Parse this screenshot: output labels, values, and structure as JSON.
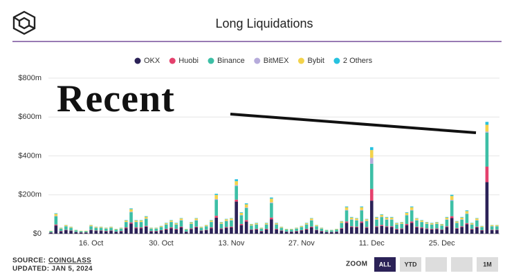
{
  "chart_data": {
    "type": "stacked_bar",
    "title": "Long Liquidations",
    "categories": [
      null,
      null,
      null,
      null,
      null,
      null,
      null,
      null,
      "16. Oct",
      null,
      null,
      null,
      null,
      null,
      null,
      null,
      null,
      null,
      null,
      null,
      null,
      null,
      "30. Oct",
      null,
      null,
      null,
      null,
      null,
      null,
      null,
      null,
      null,
      null,
      null,
      null,
      null,
      "13. Nov",
      null,
      null,
      null,
      null,
      null,
      null,
      null,
      null,
      null,
      null,
      null,
      null,
      null,
      "27. Nov",
      null,
      null,
      null,
      null,
      null,
      null,
      null,
      null,
      null,
      null,
      null,
      null,
      null,
      "11. Dec",
      null,
      null,
      null,
      null,
      null,
      null,
      null,
      null,
      null,
      null,
      null,
      null,
      null,
      "25. Dec",
      null,
      null,
      null,
      null,
      null,
      null,
      null,
      null,
      null,
      null,
      null
    ],
    "series": [
      {
        "name": "OKX",
        "color": "#2b2257",
        "values": [
          6,
          42,
          12,
          18,
          14,
          8,
          6,
          6,
          18,
          14,
          14,
          12,
          14,
          10,
          12,
          28,
          52,
          28,
          28,
          36,
          12,
          12,
          16,
          22,
          28,
          22,
          32,
          10,
          24,
          32,
          14,
          18,
          28,
          82,
          24,
          30,
          32,
          165,
          44,
          62,
          20,
          22,
          12,
          22,
          74,
          22,
          14,
          10,
          10,
          12,
          16,
          22,
          32,
          18,
          12,
          8,
          8,
          10,
          26,
          56,
          34,
          32,
          56,
          30,
          170,
          34,
          40,
          34,
          34,
          22,
          24,
          44,
          56,
          32,
          28,
          24,
          22,
          24,
          20,
          34,
          80,
          26,
          34,
          48,
          22,
          32,
          16,
          265,
          18,
          18
        ]
      },
      {
        "name": "Huobi",
        "color": "#e4416d",
        "values": [
          1,
          5,
          2,
          2,
          2,
          1,
          1,
          1,
          2,
          2,
          2,
          2,
          2,
          1,
          2,
          4,
          6,
          4,
          4,
          4,
          2,
          2,
          2,
          3,
          4,
          3,
          4,
          1,
          3,
          4,
          2,
          2,
          4,
          10,
          3,
          4,
          4,
          10,
          6,
          8,
          2,
          3,
          2,
          3,
          9,
          3,
          2,
          1,
          1,
          2,
          2,
          3,
          4,
          2,
          2,
          1,
          1,
          1,
          3,
          7,
          4,
          4,
          7,
          4,
          60,
          4,
          5,
          4,
          4,
          3,
          3,
          6,
          7,
          4,
          4,
          3,
          3,
          3,
          2,
          4,
          10,
          3,
          4,
          6,
          3,
          4,
          2,
          80,
          2,
          2
        ]
      },
      {
        "name": "Binance",
        "color": "#3dbfa6",
        "values": [
          6,
          42,
          12,
          18,
          14,
          8,
          6,
          6,
          18,
          14,
          14,
          12,
          14,
          10,
          12,
          28,
          52,
          28,
          28,
          36,
          12,
          12,
          16,
          22,
          28,
          22,
          32,
          10,
          24,
          32,
          14,
          18,
          28,
          82,
          24,
          30,
          32,
          70,
          44,
          62,
          20,
          22,
          12,
          22,
          74,
          22,
          14,
          10,
          10,
          12,
          16,
          22,
          32,
          18,
          12,
          8,
          8,
          10,
          26,
          56,
          34,
          32,
          56,
          30,
          130,
          34,
          40,
          34,
          34,
          22,
          24,
          44,
          56,
          32,
          28,
          24,
          22,
          24,
          20,
          34,
          80,
          26,
          34,
          48,
          22,
          32,
          16,
          175,
          18,
          18
        ]
      },
      {
        "name": "BitMEX",
        "color": "#b6abdb",
        "values": [
          0,
          2,
          1,
          1,
          1,
          0,
          0,
          0,
          1,
          1,
          1,
          1,
          1,
          0,
          1,
          1,
          3,
          1,
          1,
          2,
          1,
          1,
          1,
          1,
          1,
          1,
          2,
          0,
          1,
          2,
          1,
          1,
          1,
          4,
          1,
          2,
          2,
          5,
          2,
          3,
          1,
          1,
          1,
          1,
          4,
          1,
          1,
          0,
          0,
          1,
          1,
          1,
          2,
          1,
          1,
          0,
          0,
          0,
          1,
          3,
          2,
          2,
          3,
          2,
          30,
          2,
          2,
          2,
          2,
          1,
          1,
          2,
          3,
          2,
          1,
          1,
          1,
          1,
          1,
          2,
          4,
          1,
          2,
          2,
          1,
          2,
          1,
          5,
          1,
          1
        ]
      },
      {
        "name": "Bybit",
        "color": "#f3d34c",
        "values": [
          2,
          11,
          3,
          5,
          4,
          2,
          2,
          2,
          5,
          4,
          4,
          3,
          4,
          3,
          3,
          7,
          13,
          7,
          7,
          9,
          3,
          3,
          4,
          6,
          7,
          6,
          8,
          3,
          6,
          8,
          4,
          5,
          7,
          21,
          6,
          8,
          8,
          20,
          11,
          16,
          5,
          6,
          3,
          6,
          19,
          6,
          4,
          3,
          3,
          3,
          4,
          6,
          8,
          5,
          3,
          2,
          2,
          3,
          7,
          14,
          9,
          8,
          14,
          8,
          40,
          9,
          10,
          9,
          9,
          6,
          6,
          11,
          14,
          8,
          7,
          6,
          6,
          6,
          5,
          9,
          20,
          7,
          9,
          12,
          6,
          8,
          4,
          35,
          5,
          5
        ]
      },
      {
        "name": "2 Others",
        "color": "#27c2df",
        "values": [
          0,
          3,
          1,
          1,
          1,
          1,
          0,
          0,
          1,
          1,
          1,
          1,
          1,
          1,
          1,
          2,
          4,
          2,
          2,
          3,
          1,
          1,
          1,
          2,
          2,
          2,
          2,
          1,
          2,
          2,
          1,
          1,
          2,
          6,
          2,
          2,
          2,
          10,
          3,
          5,
          2,
          2,
          1,
          2,
          6,
          2,
          1,
          1,
          1,
          1,
          1,
          2,
          2,
          1,
          1,
          1,
          1,
          1,
          2,
          4,
          3,
          2,
          4,
          2,
          15,
          3,
          3,
          3,
          3,
          2,
          2,
          3,
          4,
          2,
          2,
          2,
          2,
          2,
          2,
          3,
          6,
          2,
          3,
          4,
          2,
          2,
          1,
          15,
          1,
          1
        ]
      }
    ],
    "ylim": [
      0,
      800
    ],
    "yticks": [
      {
        "value": 0,
        "label": "$0"
      },
      {
        "value": 200,
        "label": "$200m"
      },
      {
        "value": 400,
        "label": "$400m"
      },
      {
        "value": 600,
        "label": "$600m"
      },
      {
        "value": 800,
        "label": "$800m"
      }
    ],
    "grid": true,
    "legend": "top",
    "annotations": [
      "Recent"
    ]
  },
  "source": {
    "label": "SOURCE:",
    "link": "COINGLASS"
  },
  "updated": "UPDATED: JAN 5, 2024",
  "zoom": {
    "label": "ZOOM",
    "buttons": [
      "ALL",
      "YTD",
      "1M"
    ]
  }
}
